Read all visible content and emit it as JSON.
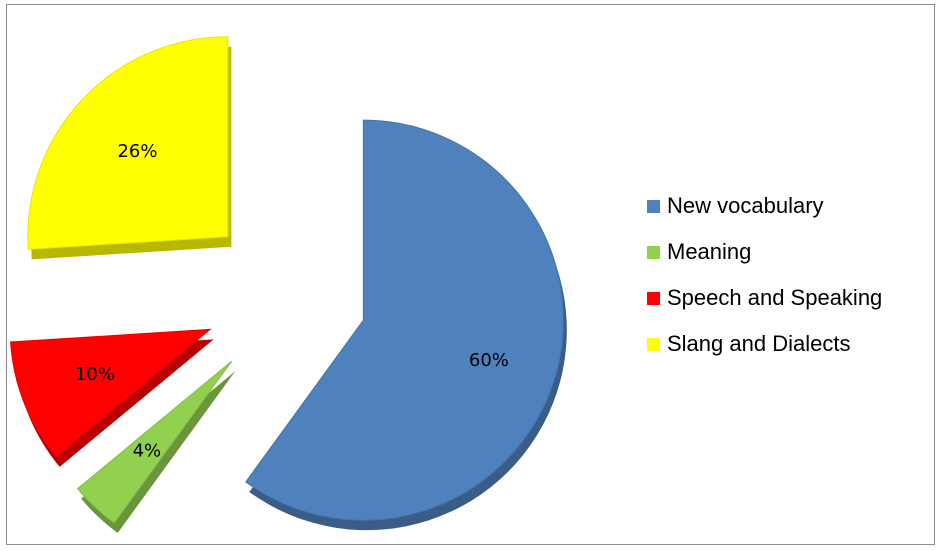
{
  "chart_data": {
    "type": "pie",
    "title": "",
    "slices": [
      {
        "name": "New vocabulary",
        "value": 60,
        "label": "60%",
        "color": "#4f81bd"
      },
      {
        "name": "Meaning",
        "value": 4,
        "label": "4%",
        "color": "#92d050"
      },
      {
        "name": "Speech and Speaking",
        "value": 10,
        "label": "10%",
        "color": "#ff0000"
      },
      {
        "name": "Slang and Dialects",
        "value": 26,
        "label": "26%",
        "color": "#ffff00"
      }
    ],
    "legend_position": "right",
    "style": "3d-exploded"
  }
}
